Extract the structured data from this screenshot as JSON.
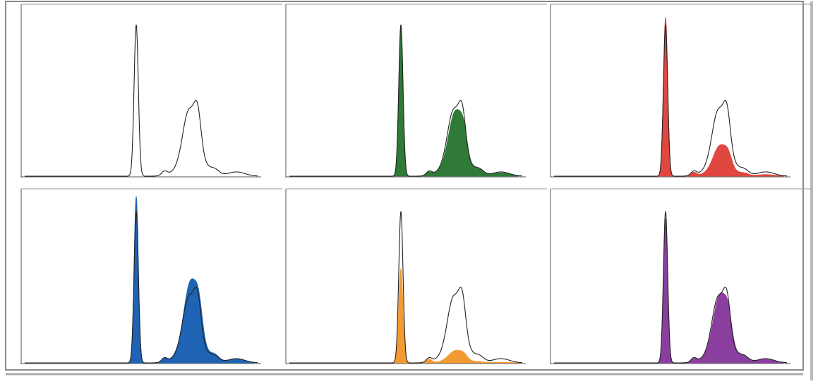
{
  "panels": [
    {},
    {
      "color": "#2f7a36"
    },
    {
      "color": "#e0473f"
    },
    {
      "color": "#1f64b4"
    },
    {
      "color": "#f39a32"
    },
    {
      "color": "#8a3f9e"
    }
  ]
}
